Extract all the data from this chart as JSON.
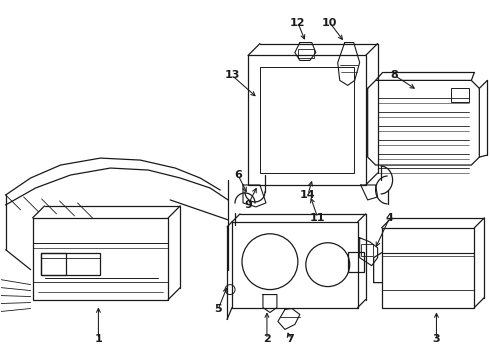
{
  "background_color": "#ffffff",
  "line_color": "#1a1a1a",
  "figsize": [
    4.9,
    3.6
  ],
  "dpi": 100,
  "label_fontsize": 8,
  "label_fontweight": "bold"
}
